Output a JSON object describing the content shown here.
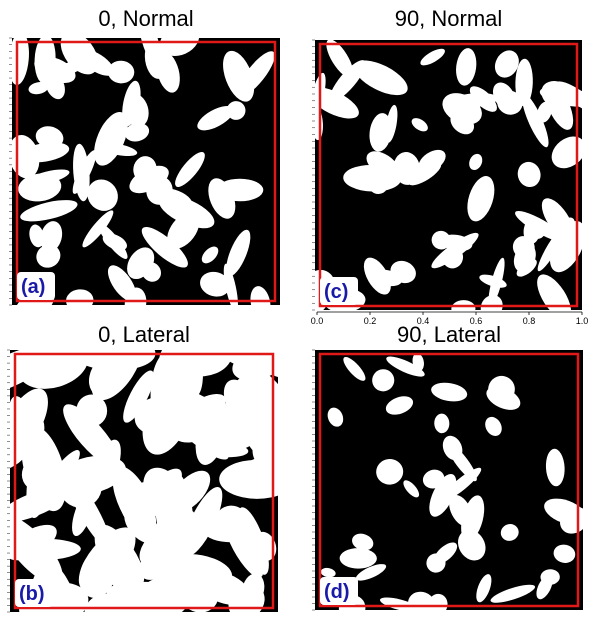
{
  "panels": [
    {
      "title": "0, Normal",
      "label": "(a)"
    },
    {
      "title": "90, Normal",
      "label": "(c)"
    },
    {
      "title": "0, Lateral",
      "label": "(b)"
    },
    {
      "title": "90, Lateral",
      "label": "(d)"
    }
  ],
  "axis": {
    "ticks": [
      "0.0",
      "0.2",
      "0.4",
      "0.6",
      "0.8",
      "1.0"
    ]
  }
}
